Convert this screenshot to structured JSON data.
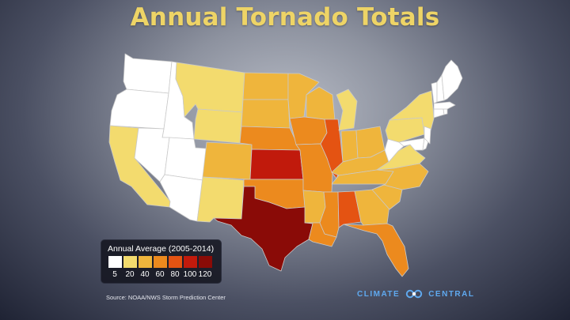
{
  "title": "Annual Tornado Totals",
  "legend": {
    "title": "Annual Average (2005-2014)",
    "ticks": [
      "5",
      "20",
      "40",
      "60",
      "80",
      "100",
      "120"
    ],
    "colors": [
      "#ffffff",
      "#f3db6e",
      "#efb53c",
      "#ec8a1e",
      "#e45312",
      "#c11a0c",
      "#8a0b07"
    ]
  },
  "source": "Source: NOAA/NWS Storm Prediction Center",
  "brand": {
    "left": "CLIMATE",
    "right": "CENTRAL",
    "logo": "climate-central-logo",
    "color": "#5fa9ef"
  },
  "states": [
    {
      "code": "WA",
      "level": 0
    },
    {
      "code": "OR",
      "level": 0
    },
    {
      "code": "ID",
      "level": 0
    },
    {
      "code": "NV",
      "level": 0
    },
    {
      "code": "UT",
      "level": 0
    },
    {
      "code": "AZ",
      "level": 0
    },
    {
      "code": "CA",
      "level": 1
    },
    {
      "code": "MT",
      "level": 1
    },
    {
      "code": "WY",
      "level": 1
    },
    {
      "code": "NM",
      "level": 1
    },
    {
      "code": "MI",
      "level": 1
    },
    {
      "code": "PA",
      "level": 1
    },
    {
      "code": "NY",
      "level": 1
    },
    {
      "code": "VA",
      "level": 1
    },
    {
      "code": "CO",
      "level": 2
    },
    {
      "code": "ND",
      "level": 2
    },
    {
      "code": "SD",
      "level": 2
    },
    {
      "code": "MN",
      "level": 2
    },
    {
      "code": "WI",
      "level": 2
    },
    {
      "code": "IN",
      "level": 2
    },
    {
      "code": "OH",
      "level": 2
    },
    {
      "code": "KY",
      "level": 2
    },
    {
      "code": "TN",
      "level": 2
    },
    {
      "code": "NC",
      "level": 2
    },
    {
      "code": "SC",
      "level": 2
    },
    {
      "code": "GA",
      "level": 2
    },
    {
      "code": "AR",
      "level": 2
    },
    {
      "code": "NE",
      "level": 3
    },
    {
      "code": "IA",
      "level": 3
    },
    {
      "code": "OK",
      "level": 3
    },
    {
      "code": "MO",
      "level": 3
    },
    {
      "code": "LA",
      "level": 3
    },
    {
      "code": "MS",
      "level": 3
    },
    {
      "code": "FL",
      "level": 3
    },
    {
      "code": "IL",
      "level": 4
    },
    {
      "code": "AL",
      "level": 4
    },
    {
      "code": "KS",
      "level": 5
    },
    {
      "code": "TX",
      "level": 6
    },
    {
      "code": "ME",
      "level": 0
    },
    {
      "code": "NH",
      "level": 0
    },
    {
      "code": "VT",
      "level": 0
    },
    {
      "code": "MA",
      "level": 0
    },
    {
      "code": "CT",
      "level": 0
    },
    {
      "code": "RI",
      "level": 0
    },
    {
      "code": "NJ",
      "level": 0
    },
    {
      "code": "DE",
      "level": 0
    },
    {
      "code": "MD",
      "level": 0
    },
    {
      "code": "WV",
      "level": 0
    }
  ]
}
